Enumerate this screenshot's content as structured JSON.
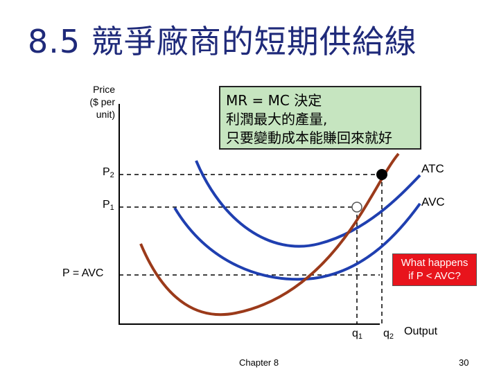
{
  "title": "8.5 競爭廠商的短期供給線",
  "yaxis_label": [
    "Price",
    "($ per",
    "unit)"
  ],
  "xaxis_label": "Output",
  "callout": {
    "lines": [
      "MR = MC 決定",
      "利潤最大的產量,",
      "只要變動成本能賺回來就好"
    ],
    "color": "#c6e5c0"
  },
  "question_box": {
    "lines": [
      "What happens",
      "if P < AVC?"
    ],
    "color": "#e8141c"
  },
  "price_labels": {
    "p2": "P",
    "p2_sub": "2",
    "p1": "P",
    "p1_sub": "1",
    "p_avc": "P = AVC"
  },
  "quantity_labels": {
    "q1": "q",
    "q1_sub": "1",
    "q2": "q",
    "q2_sub": "2"
  },
  "curve_labels": {
    "atc": "ATC",
    "avc": "AVC"
  },
  "curves": {
    "mc_color": "#9b3a1a",
    "atc_color": "#1f3fb0",
    "avc_color": "#1f3fb0"
  },
  "footer": {
    "chapter": "Chapter 8",
    "page": "30"
  }
}
